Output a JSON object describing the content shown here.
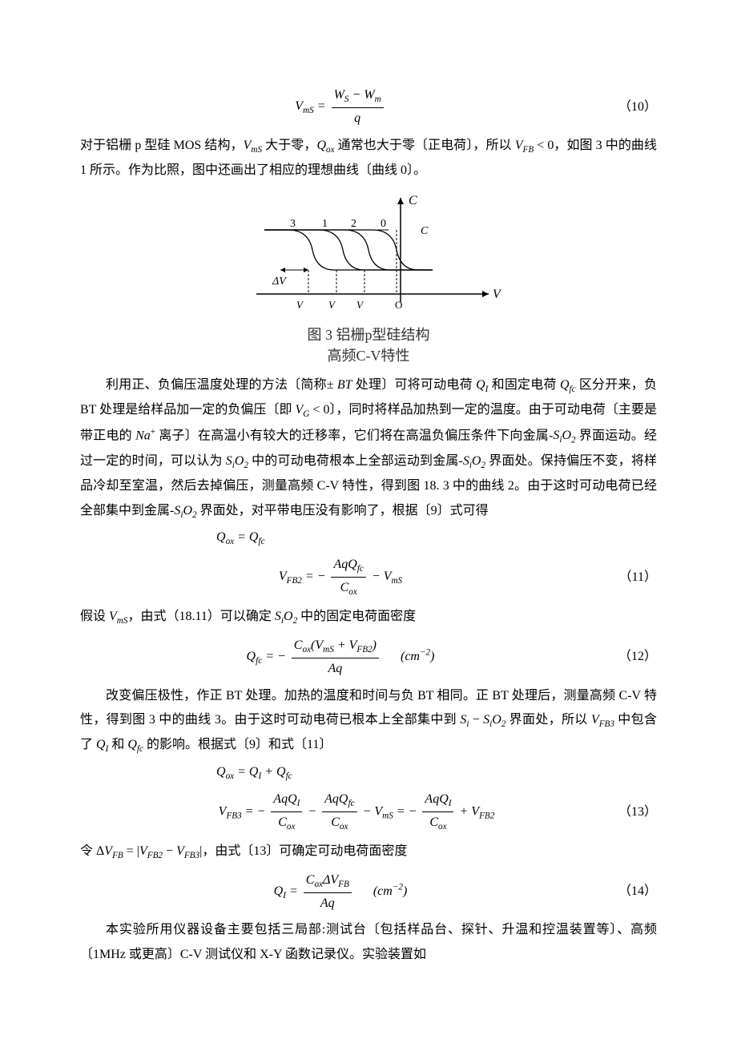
{
  "eq10": {
    "lhs": "V<sub>mS</sub> =",
    "num": "W<sub>S</sub> − W<sub>m</sub>",
    "den": "q",
    "num_label": "（10）"
  },
  "para1": "对于铝栅 p 型硅 MOS 结构，<span class='it'>V<sub>mS</sub></span> 大于零，<span class='it'>Q<sub>ox</sub></span> 通常也大于零〔正电荷〕，所以 <span class='it'>V<sub>FB</sub></span> &lt; 0，如图 3 中的曲线 1 所示。作为比照，图中还画出了相应的理想曲线〔曲线 0〕。",
  "figure": {
    "caption_line1": "图 3  铝栅p型硅结构",
    "caption_line2": "高频C-V特性",
    "y_label": "C",
    "x_label": "V",
    "curve_labels": [
      "3",
      "1",
      "2",
      "0"
    ],
    "cfb_label": "C<sub>FB</sub>",
    "dvfb_label": "ΔV<sub>FB</sub>",
    "x_ticks": [
      "V<sub>FB3</sub>",
      "V<sub>FB</sub>",
      "V<sub>FB2</sub>",
      "O"
    ],
    "colors": {
      "line": "#000000",
      "bg": "#ffffff"
    }
  },
  "para2": "利用正、负偏压温度处理的方法〔简称± <span class='it'>BT</span> 处理〕可将可动电荷 <span class='it'>Q<sub>I</sub></span> 和固定电荷 <span class='it'>Q<sub>fc</sub></span> 区分开来，负 BT 处理是给样品加一定的负偏压〔即 <span class='it'>V<sub>G</sub></span> &lt; 0〕，同时将样品加热到一定的温度。由于可动电荷〔主要是带正电的 <span class='it'>Na</span><sup>+</sup> 离子〕在高温小有较大的迁移率，它们将在高温负偏压条件下向金属-<span class='it'>S<sub>i</sub>O</span><sub>2</sub> 界面运动。经过一定的时间，可以认为 <span class='it'>S<sub>i</sub>O</span><sub>2</sub> 中的可动电荷根本上全部运动到金属-<span class='it'>S<sub>i</sub>O</span><sub>2</sub> 界面处。保持偏压不变，将样品冷却至室温，然后去掉偏压，测量高频 C-V 特性，得到图 18. 3 中的曲线 2。由于这时可动电荷已经全部集中到金属-<span class='it'>S<sub>i</sub>O</span><sub>2</sub> 界面处，对平带电压没有影响了，根据〔9〕式可得",
  "eq11_pre": "Q<sub>ox</sub> = Q<sub>fc</sub>",
  "eq11": {
    "lhs": "V<sub>FB2</sub> = −",
    "num": "AqQ<sub>fc</sub>",
    "den": "C<sub>ox</sub>",
    "tail": " − V<sub>mS</sub>",
    "num_label": "（11）"
  },
  "para3": "假设 <span class='it'>V<sub>mS</sub></span>，由式（18.11）可以确定 <span class='it'>S<sub>i</sub>O</span><sub>2</sub> 中的固定电荷面密度",
  "eq12": {
    "lhs": "Q<sub>fc</sub> = −",
    "num": "C<sub>ox</sub>(V<sub>mS</sub> + V<sub>FB2</sub>)",
    "den": "Aq",
    "unit": "(cm<sup>−2</sup>)",
    "num_label": "（12）"
  },
  "para4": "改变偏压极性，作正 BT 处理。加热的温度和时间与负 BT 相同。正 BT 处理后，测量高频 C-V 特性，得到图 3 中的曲线 3。由于这时可动电荷已根本上全部集中到 <span class='it'>S<sub>i</sub></span> − <span class='it'>S<sub>i</sub>O</span><sub>2</sub> 界面处，所以 <span class='it'>V<sub>FB3</sub></span> 中包含了 <span class='it'>Q<sub>I</sub></span> 和 <span class='it'>Q<sub>fc</sub></span> 的影响。根据式〔9〕和式〔11〕",
  "eq13_pre": "Q<sub>ox</sub> = Q<sub>I</sub> + Q<sub>fc</sub>",
  "eq13": {
    "body": "V<sub>FB3</sub> = − <span class='frac'><span class='num'>AqQ<sub>I</sub></span><span class='den'>C<sub>ox</sub></span></span> − <span class='frac'><span class='num'>AqQ<sub>fc</sub></span><span class='den'>C<sub>ox</sub></span></span> − V<sub>mS</sub> = − <span class='frac'><span class='num'>AqQ<sub>I</sub></span><span class='den'>C<sub>ox</sub></span></span> + V<sub>FB2</sub>",
    "num_label": "（13）"
  },
  "para5": "令 Δ<span class='it'>V<sub>FB</sub></span> = |<span class='it'>V<sub>FB2</sub></span> − <span class='it'>V<sub>FB3</sub></span>|，由式〔13〕可确定可动电荷面密度",
  "eq14": {
    "lhs": "Q<sub>I</sub> =",
    "num": "C<sub>ox</sub>ΔV<sub>FB</sub>",
    "den": "Aq",
    "unit": "(cm<sup>−2</sup>)",
    "num_label": "（14）"
  },
  "para6": "本实验所用仪器设备主要包括三局部:测试台〔包括样品台、探针、升温和控温装置等〕、高频〔1MHz 或更高〕C-V 测试仪和 X-Y 函数记录仪。实验装置如"
}
